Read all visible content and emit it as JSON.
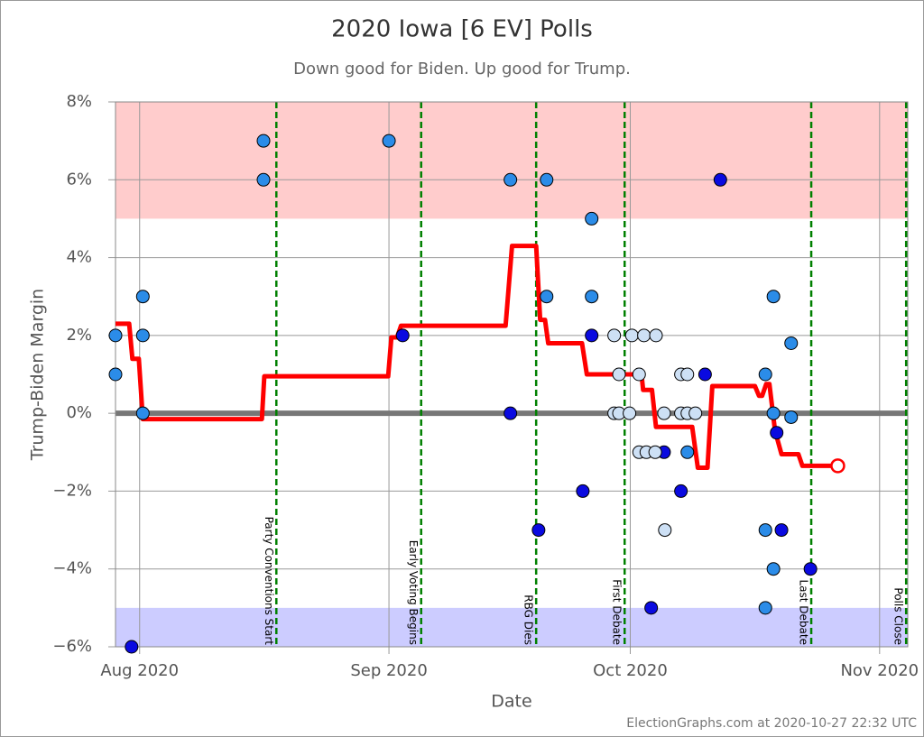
{
  "chart_data": {
    "type": "scatter",
    "title": "2020 Iowa [6 EV] Polls",
    "subtitle": "Down good for Biden. Up good for Trump.",
    "x_label": "Date",
    "y_label": "Trump-Biden Margin",
    "credit": "ElectionGraphs.com at 2020-10-27 22:32 UTC",
    "xlim": [
      211,
      309.5
    ],
    "xticks": [
      {
        "value": 214,
        "label": "Aug 2020"
      },
      {
        "value": 245,
        "label": "Sep 2020"
      },
      {
        "value": 275,
        "label": "Oct 2020"
      },
      {
        "value": 306,
        "label": "Nov 2020"
      }
    ],
    "ylim": [
      -6,
      8
    ],
    "yticks": [
      {
        "value": -6,
        "label": "−6%"
      },
      {
        "value": -4,
        "label": "−4%"
      },
      {
        "value": -2,
        "label": "−2%"
      },
      {
        "value": 0,
        "label": "0%"
      },
      {
        "value": 2,
        "label": "2%"
      },
      {
        "value": 4,
        "label": "4%"
      },
      {
        "value": 6,
        "label": "6%"
      },
      {
        "value": 8,
        "label": "8%"
      }
    ],
    "grid": true,
    "hline": 0,
    "bands": [
      {
        "from": 5,
        "to": 8,
        "color": "#ffcccc"
      },
      {
        "from": -6,
        "to": -5,
        "color": "#ccccff"
      }
    ],
    "events": [
      {
        "label": "Party Conventions Start",
        "x": 231
      },
      {
        "label": "Early Voting Begins",
        "x": 249
      },
      {
        "label": "RBG Dies",
        "x": 263.3
      },
      {
        "label": "First Debate",
        "x": 274.3
      },
      {
        "label": "Last Debate",
        "x": 297.5
      },
      {
        "label": "Polls Close",
        "x": 309.3
      }
    ],
    "series": [
      {
        "color": "#2b8ce8",
        "x": [
          211,
          211,
          214.4,
          214.4,
          214.4,
          229.4,
          229.4,
          245,
          260.1,
          264.6,
          264.6,
          270.2,
          270.2,
          282.1,
          291.8,
          291.8,
          291.8,
          292.8,
          292.8,
          292.8,
          295,
          295
        ],
        "values": [
          2,
          1,
          3,
          2,
          0,
          7,
          6,
          7,
          6,
          6,
          3,
          5,
          3,
          -1,
          1,
          -3,
          -5,
          3,
          0,
          -4,
          1.8,
          -0.1
        ]
      },
      {
        "color": "#0a0ae0",
        "x": [
          213,
          246.7,
          260.1,
          263.6,
          269.1,
          270.2,
          277.6,
          279.2,
          281.3,
          284.3,
          286.2,
          293.2,
          293.8,
          297.4
        ],
        "values": [
          -6,
          2,
          0,
          -3,
          -2,
          2,
          -5,
          -1,
          -2,
          1,
          6,
          -0.5,
          -3,
          -4
        ]
      },
      {
        "color": "#cde0f5",
        "x": [
          273,
          273,
          273.6,
          273.6,
          274.9,
          275.2,
          276.1,
          276.1,
          277,
          276.7,
          278.2,
          278.1,
          279.2,
          279.3,
          281.3,
          282.1,
          281.3,
          282.1,
          283.1
        ],
        "values": [
          2,
          0,
          1,
          0,
          0,
          2,
          1,
          -1,
          -1,
          2,
          2,
          -1,
          0,
          -3,
          1,
          1,
          0,
          0,
          0
        ]
      }
    ],
    "average": {
      "color": "#ff0000",
      "x": [
        211,
        212.7,
        213.1,
        213.9,
        214.4,
        229.2,
        229.5,
        244.9,
        245.3,
        246.0,
        246.5,
        259.5,
        260.3,
        263.3,
        263.8,
        264.4,
        264.8,
        269.0,
        269.6,
        276.4,
        276.6,
        277.7,
        278.2,
        282.7,
        283.4,
        284.6,
        285.2,
        290.5,
        291.0,
        291.4,
        291.9,
        292.3,
        293.0,
        293.8,
        295.9,
        296.4,
        300.8
      ],
      "values": [
        2.3,
        2.3,
        1.4,
        1.4,
        -0.15,
        -0.15,
        0.95,
        0.95,
        1.95,
        1.95,
        2.25,
        2.25,
        4.3,
        4.3,
        2.4,
        2.4,
        1.8,
        1.8,
        1.0,
        1.0,
        0.6,
        0.6,
        -0.35,
        -0.35,
        -1.4,
        -1.4,
        0.7,
        0.7,
        0.45,
        0.45,
        0.75,
        0.75,
        -0.45,
        -1.05,
        -1.05,
        -1.35,
        -1.35
      ]
    }
  }
}
